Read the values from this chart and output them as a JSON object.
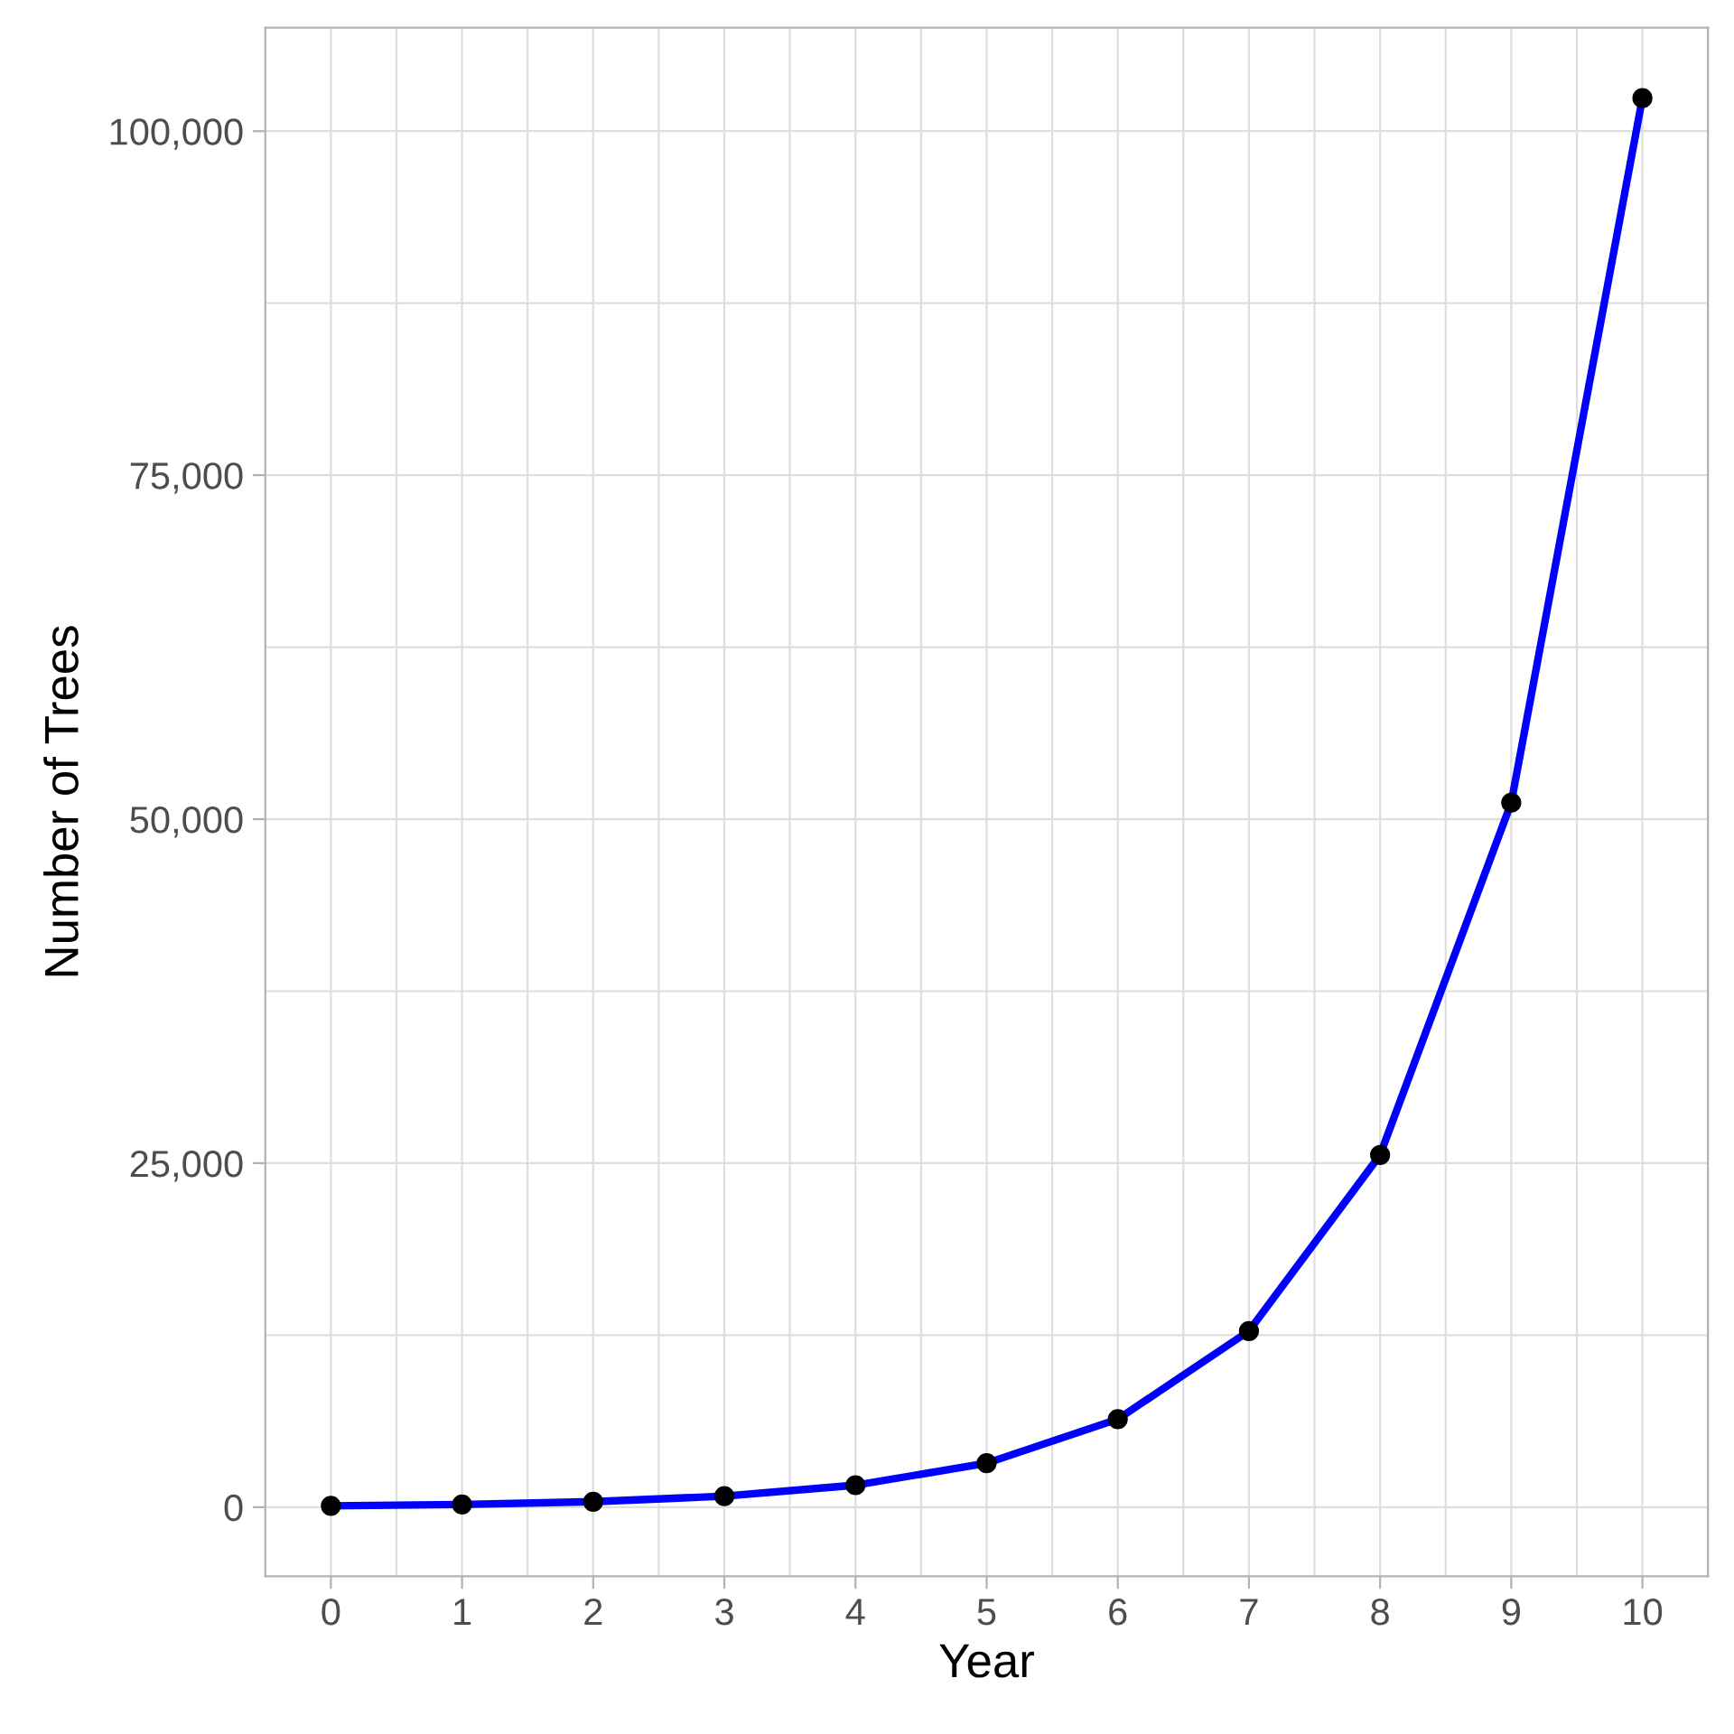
{
  "chart_data": {
    "type": "line",
    "xlabel": "Year",
    "ylabel": "Number of Trees",
    "x": [
      0,
      1,
      2,
      3,
      4,
      5,
      6,
      7,
      8,
      9,
      10
    ],
    "series": [
      {
        "color": "#0000ff",
        "values": [
          100,
          200,
          400,
          800,
          1600,
          3200,
          6400,
          12800,
          25600,
          51200,
          102400
        ]
      }
    ],
    "marker": "circle",
    "xlim": [
      -0.5,
      10.5
    ],
    "xticks": [
      0,
      1,
      2,
      3,
      4,
      5,
      6,
      7,
      8,
      9,
      10
    ],
    "ylim": [
      -5015,
      107515
    ],
    "yticks": [
      {
        "value": 0,
        "label": "0"
      },
      {
        "value": 25000,
        "label": "25,000"
      },
      {
        "value": 50000,
        "label": "50,000"
      },
      {
        "value": 75000,
        "label": "75,000"
      },
      {
        "value": 100000,
        "label": "100,000"
      }
    ],
    "grid": true
  }
}
